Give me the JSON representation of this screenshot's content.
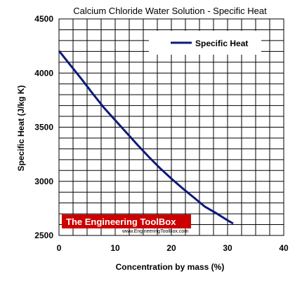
{
  "chart_data": {
    "type": "line",
    "title": "Calcium Chloride Water Solution - Specific Heat",
    "xlabel": "Concentration by mass (%)",
    "ylabel": "Specific Heat (J/kg K)",
    "xlim": [
      0,
      40
    ],
    "ylim": [
      2500,
      4500
    ],
    "xticks": [
      0,
      10,
      20,
      30,
      40
    ],
    "yticks": [
      2500,
      3000,
      3500,
      4000,
      4500
    ],
    "grid": true,
    "legend_position": "top-right",
    "series": [
      {
        "name": "Specific Heat",
        "color": "#0a1a7a",
        "x": [
          0,
          2,
          4,
          6,
          8,
          10,
          12,
          14,
          16,
          18,
          20,
          22,
          24,
          26,
          28,
          30,
          31
        ],
        "y": [
          4205,
          4075,
          3945,
          3810,
          3680,
          3565,
          3450,
          3335,
          3225,
          3120,
          3025,
          2935,
          2850,
          2765,
          2705,
          2640,
          2610
        ]
      }
    ]
  },
  "watermark": {
    "name": "The Engineering ToolBox",
    "url": "www.EngineeringToolBox.com",
    "bg_color": "#cc0000"
  }
}
